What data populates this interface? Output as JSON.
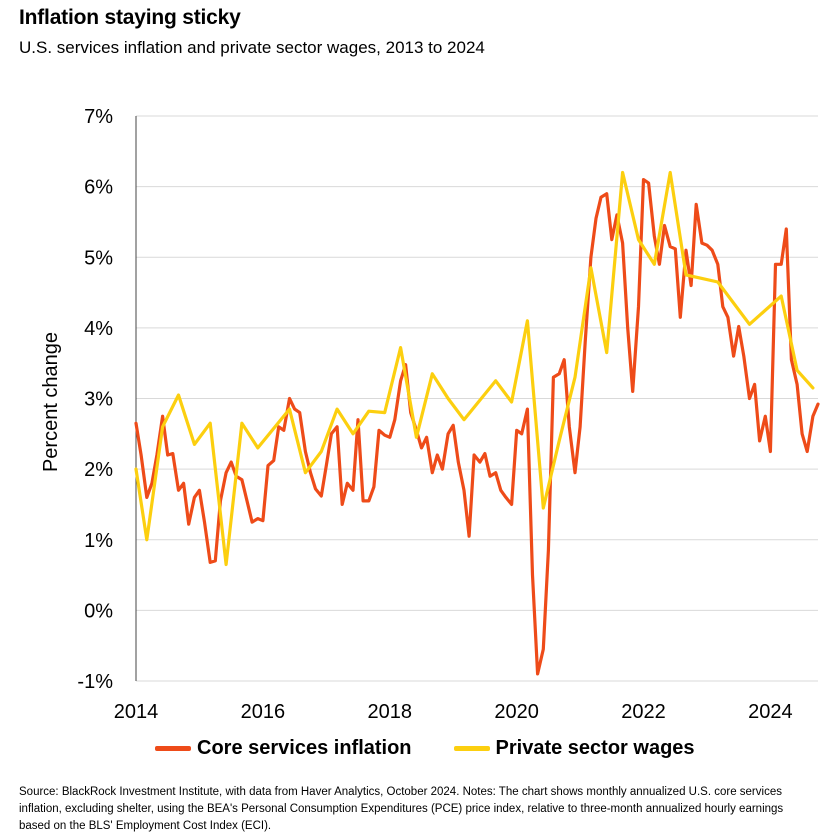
{
  "header": {
    "title": "Inflation staying sticky",
    "subtitle": "U.S. services inflation and private sector wages, 2013 to 2024"
  },
  "footer": {
    "source": "Source: BlackRock Investment Institute, with data from Haver Analytics, October 2024. Notes: The chart shows monthly annualized U.S. core services inflation, excluding shelter, using the BEA's Personal Consumption Expenditures (PCE) price index, relative to three-month annualized hourly earnings based on the BLS' Employment Cost Index (ECI)."
  },
  "chart_data": {
    "type": "line",
    "title": "Inflation staying sticky",
    "subtitle": "U.S. services inflation and private sector wages, 2013 to 2024",
    "ylabel": "Percent change",
    "xlabel": "",
    "xlim": [
      2014,
      2024.75
    ],
    "ylim": [
      -1,
      7
    ],
    "x_ticks": [
      {
        "value": 2014,
        "label": "2014"
      },
      {
        "value": 2016,
        "label": "2016"
      },
      {
        "value": 2018,
        "label": "2018"
      },
      {
        "value": 2020,
        "label": "2020"
      },
      {
        "value": 2022,
        "label": "2022"
      },
      {
        "value": 2024,
        "label": "2024"
      }
    ],
    "y_ticks": [
      {
        "value": 7,
        "label": "7%"
      },
      {
        "value": 6,
        "label": "6%"
      },
      {
        "value": 5,
        "label": "5%"
      },
      {
        "value": 4,
        "label": "4%"
      },
      {
        "value": 3,
        "label": "3%"
      },
      {
        "value": 2,
        "label": "2%"
      },
      {
        "value": 1,
        "label": "1%"
      },
      {
        "value": 0,
        "label": "0%"
      },
      {
        "value": -1,
        "label": "-1%"
      }
    ],
    "grid": true,
    "legend_position": "bottom",
    "series": [
      {
        "name": "Core services inflation",
        "color": "#ee4b19",
        "points": [
          [
            2014.0,
            2.65
          ],
          [
            2014.08,
            2.2
          ],
          [
            2014.17,
            1.6
          ],
          [
            2014.25,
            1.8
          ],
          [
            2014.33,
            2.2
          ],
          [
            2014.42,
            2.75
          ],
          [
            2014.5,
            2.2
          ],
          [
            2014.58,
            2.22
          ],
          [
            2014.67,
            1.7
          ],
          [
            2014.75,
            1.8
          ],
          [
            2014.83,
            1.22
          ],
          [
            2014.92,
            1.6
          ],
          [
            2015.0,
            1.7
          ],
          [
            2015.08,
            1.25
          ],
          [
            2015.17,
            0.68
          ],
          [
            2015.25,
            0.7
          ],
          [
            2015.33,
            1.55
          ],
          [
            2015.42,
            1.95
          ],
          [
            2015.5,
            2.1
          ],
          [
            2015.58,
            1.9
          ],
          [
            2015.67,
            1.85
          ],
          [
            2015.75,
            1.55
          ],
          [
            2015.83,
            1.25
          ],
          [
            2015.92,
            1.3
          ],
          [
            2016.0,
            1.27
          ],
          [
            2016.08,
            2.05
          ],
          [
            2016.17,
            2.12
          ],
          [
            2016.25,
            2.6
          ],
          [
            2016.33,
            2.55
          ],
          [
            2016.42,
            3.0
          ],
          [
            2016.5,
            2.85
          ],
          [
            2016.58,
            2.8
          ],
          [
            2016.67,
            2.25
          ],
          [
            2016.75,
            1.95
          ],
          [
            2016.83,
            1.72
          ],
          [
            2016.92,
            1.62
          ],
          [
            2017.0,
            2.05
          ],
          [
            2017.08,
            2.5
          ],
          [
            2017.17,
            2.6
          ],
          [
            2017.25,
            1.5
          ],
          [
            2017.33,
            1.8
          ],
          [
            2017.42,
            1.7
          ],
          [
            2017.5,
            2.7
          ],
          [
            2017.58,
            1.55
          ],
          [
            2017.67,
            1.55
          ],
          [
            2017.75,
            1.75
          ],
          [
            2017.83,
            2.55
          ],
          [
            2017.92,
            2.48
          ],
          [
            2018.0,
            2.45
          ],
          [
            2018.08,
            2.7
          ],
          [
            2018.17,
            3.25
          ],
          [
            2018.25,
            3.48
          ],
          [
            2018.33,
            2.8
          ],
          [
            2018.42,
            2.55
          ],
          [
            2018.5,
            2.3
          ],
          [
            2018.58,
            2.45
          ],
          [
            2018.67,
            1.95
          ],
          [
            2018.75,
            2.2
          ],
          [
            2018.83,
            2.0
          ],
          [
            2018.92,
            2.5
          ],
          [
            2019.0,
            2.62
          ],
          [
            2019.08,
            2.1
          ],
          [
            2019.17,
            1.7
          ],
          [
            2019.25,
            1.05
          ],
          [
            2019.33,
            2.2
          ],
          [
            2019.42,
            2.1
          ],
          [
            2019.5,
            2.22
          ],
          [
            2019.58,
            1.9
          ],
          [
            2019.67,
            1.95
          ],
          [
            2019.75,
            1.7
          ],
          [
            2019.83,
            1.6
          ],
          [
            2019.92,
            1.5
          ],
          [
            2020.0,
            2.55
          ],
          [
            2020.08,
            2.5
          ],
          [
            2020.17,
            2.85
          ],
          [
            2020.25,
            0.5
          ],
          [
            2020.33,
            -0.9
          ],
          [
            2020.42,
            -0.55
          ],
          [
            2020.5,
            0.85
          ],
          [
            2020.58,
            3.3
          ],
          [
            2020.67,
            3.35
          ],
          [
            2020.75,
            3.55
          ],
          [
            2020.83,
            2.6
          ],
          [
            2020.92,
            1.95
          ],
          [
            2021.0,
            2.6
          ],
          [
            2021.08,
            3.8
          ],
          [
            2021.17,
            5.0
          ],
          [
            2021.25,
            5.55
          ],
          [
            2021.33,
            5.85
          ],
          [
            2021.42,
            5.9
          ],
          [
            2021.5,
            5.25
          ],
          [
            2021.58,
            5.6
          ],
          [
            2021.67,
            5.2
          ],
          [
            2021.75,
            4.0
          ],
          [
            2021.83,
            3.1
          ],
          [
            2021.92,
            4.3
          ],
          [
            2022.0,
            6.1
          ],
          [
            2022.08,
            6.05
          ],
          [
            2022.17,
            5.3
          ],
          [
            2022.25,
            4.9
          ],
          [
            2022.33,
            5.45
          ],
          [
            2022.42,
            5.15
          ],
          [
            2022.5,
            5.12
          ],
          [
            2022.58,
            4.15
          ],
          [
            2022.67,
            5.1
          ],
          [
            2022.75,
            4.6
          ],
          [
            2022.83,
            5.75
          ],
          [
            2022.92,
            5.2
          ],
          [
            2023.0,
            5.17
          ],
          [
            2023.08,
            5.1
          ],
          [
            2023.17,
            4.9
          ],
          [
            2023.25,
            4.3
          ],
          [
            2023.33,
            4.15
          ],
          [
            2023.42,
            3.6
          ],
          [
            2023.5,
            4.02
          ],
          [
            2023.58,
            3.6
          ],
          [
            2023.67,
            3.0
          ],
          [
            2023.75,
            3.2
          ],
          [
            2023.83,
            2.4
          ],
          [
            2023.92,
            2.75
          ],
          [
            2024.0,
            2.25
          ],
          [
            2024.08,
            4.9
          ],
          [
            2024.17,
            4.9
          ],
          [
            2024.25,
            5.4
          ],
          [
            2024.33,
            3.55
          ],
          [
            2024.42,
            3.2
          ],
          [
            2024.5,
            2.5
          ],
          [
            2024.58,
            2.25
          ],
          [
            2024.67,
            2.75
          ],
          [
            2024.75,
            2.92
          ]
        ]
      },
      {
        "name": "Private sector wages",
        "color": "#fccf0f",
        "points": [
          [
            2014.0,
            2.0
          ],
          [
            2014.17,
            1.0
          ],
          [
            2014.42,
            2.6
          ],
          [
            2014.67,
            3.05
          ],
          [
            2014.92,
            2.35
          ],
          [
            2015.17,
            2.65
          ],
          [
            2015.42,
            0.65
          ],
          [
            2015.67,
            2.65
          ],
          [
            2015.92,
            2.3
          ],
          [
            2016.42,
            2.85
          ],
          [
            2016.67,
            1.95
          ],
          [
            2016.92,
            2.25
          ],
          [
            2017.17,
            2.85
          ],
          [
            2017.42,
            2.5
          ],
          [
            2017.67,
            2.82
          ],
          [
            2017.92,
            2.8
          ],
          [
            2018.17,
            3.72
          ],
          [
            2018.42,
            2.45
          ],
          [
            2018.67,
            3.35
          ],
          [
            2018.92,
            3.0
          ],
          [
            2019.17,
            2.7
          ],
          [
            2019.67,
            3.25
          ],
          [
            2019.92,
            2.95
          ],
          [
            2020.17,
            4.1
          ],
          [
            2020.42,
            1.45
          ],
          [
            2020.67,
            2.4
          ],
          [
            2020.92,
            3.3
          ],
          [
            2021.17,
            4.85
          ],
          [
            2021.42,
            3.65
          ],
          [
            2021.67,
            6.2
          ],
          [
            2021.92,
            5.25
          ],
          [
            2022.17,
            4.9
          ],
          [
            2022.42,
            6.2
          ],
          [
            2022.67,
            4.75
          ],
          [
            2022.92,
            4.7
          ],
          [
            2023.17,
            4.65
          ],
          [
            2023.67,
            4.05
          ],
          [
            2024.17,
            4.45
          ],
          [
            2024.42,
            3.4
          ],
          [
            2024.67,
            3.15
          ]
        ]
      }
    ]
  }
}
